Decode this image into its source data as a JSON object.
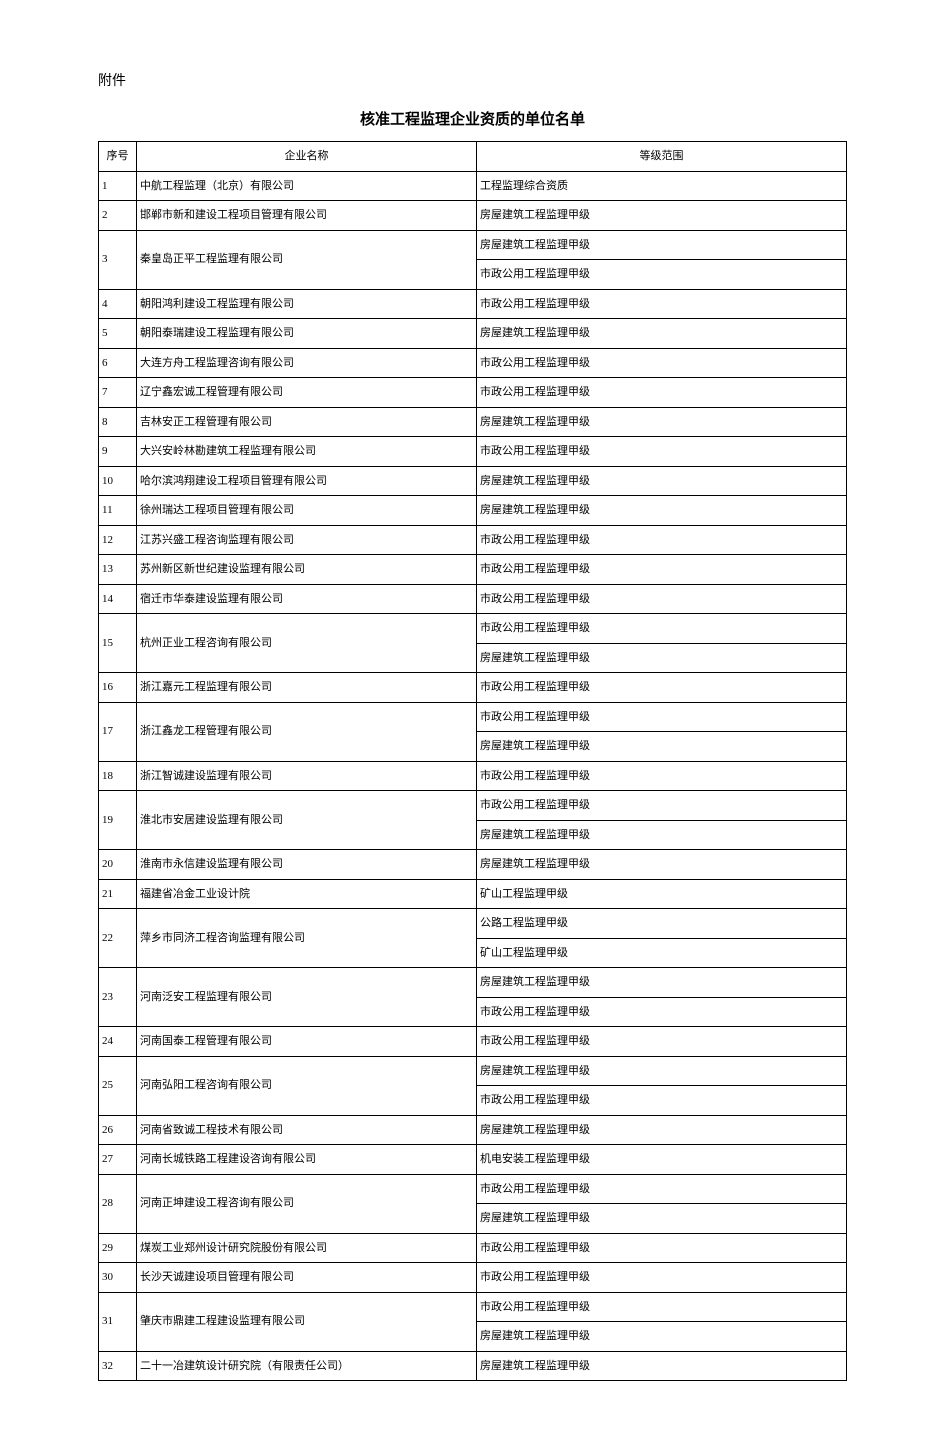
{
  "attachment_label": "附件",
  "title": "核准工程监理企业资质的单位名单",
  "headers": {
    "seq": "序号",
    "company": "企业名称",
    "scope": "等级范围"
  },
  "rows": [
    {
      "seq": "1",
      "company": "中航工程监理（北京）有限公司",
      "scopes": [
        "工程监理综合资质"
      ]
    },
    {
      "seq": "2",
      "company": "邯郸市新和建设工程项目管理有限公司",
      "scopes": [
        "房屋建筑工程监理甲级"
      ]
    },
    {
      "seq": "3",
      "company": "秦皇岛正平工程监理有限公司",
      "scopes": [
        "房屋建筑工程监理甲级",
        "市政公用工程监理甲级"
      ]
    },
    {
      "seq": "4",
      "company": "朝阳鸿利建设工程监理有限公司",
      "scopes": [
        "市政公用工程监理甲级"
      ]
    },
    {
      "seq": "5",
      "company": "朝阳泰瑞建设工程监理有限公司",
      "scopes": [
        "房屋建筑工程监理甲级"
      ]
    },
    {
      "seq": "6",
      "company": "大连方舟工程监理咨询有限公司",
      "scopes": [
        "市政公用工程监理甲级"
      ]
    },
    {
      "seq": "7",
      "company": "辽宁鑫宏诚工程管理有限公司",
      "scopes": [
        "市政公用工程监理甲级"
      ]
    },
    {
      "seq": "8",
      "company": "吉林安正工程管理有限公司",
      "scopes": [
        "房屋建筑工程监理甲级"
      ]
    },
    {
      "seq": "9",
      "company": "大兴安岭林勘建筑工程监理有限公司",
      "scopes": [
        "市政公用工程监理甲级"
      ]
    },
    {
      "seq": "10",
      "company": "哈尔滨鸿翔建设工程项目管理有限公司",
      "scopes": [
        "房屋建筑工程监理甲级"
      ]
    },
    {
      "seq": "11",
      "company": "徐州瑞达工程项目管理有限公司",
      "scopes": [
        "房屋建筑工程监理甲级"
      ]
    },
    {
      "seq": "12",
      "company": "江苏兴盛工程咨询监理有限公司",
      "scopes": [
        "市政公用工程监理甲级"
      ]
    },
    {
      "seq": "13",
      "company": "苏州新区新世纪建设监理有限公司",
      "scopes": [
        "市政公用工程监理甲级"
      ]
    },
    {
      "seq": "14",
      "company": "宿迁市华泰建设监理有限公司",
      "scopes": [
        "市政公用工程监理甲级"
      ]
    },
    {
      "seq": "15",
      "company": "杭州正业工程咨询有限公司",
      "scopes": [
        "市政公用工程监理甲级",
        "房屋建筑工程监理甲级"
      ]
    },
    {
      "seq": "16",
      "company": "浙江嘉元工程监理有限公司",
      "scopes": [
        "市政公用工程监理甲级"
      ]
    },
    {
      "seq": "17",
      "company": "浙江鑫龙工程管理有限公司",
      "scopes": [
        "市政公用工程监理甲级",
        "房屋建筑工程监理甲级"
      ]
    },
    {
      "seq": "18",
      "company": "浙江智诚建设监理有限公司",
      "scopes": [
        "市政公用工程监理甲级"
      ]
    },
    {
      "seq": "19",
      "company": "淮北市安居建设监理有限公司",
      "scopes": [
        "市政公用工程监理甲级",
        "房屋建筑工程监理甲级"
      ]
    },
    {
      "seq": "20",
      "company": "淮南市永信建设监理有限公司",
      "scopes": [
        "房屋建筑工程监理甲级"
      ]
    },
    {
      "seq": "21",
      "company": "福建省冶金工业设计院",
      "scopes": [
        "矿山工程监理甲级"
      ]
    },
    {
      "seq": "22",
      "company": "萍乡市同济工程咨询监理有限公司",
      "scopes": [
        "公路工程监理甲级",
        "矿山工程监理甲级"
      ]
    },
    {
      "seq": "23",
      "company": "河南泛安工程监理有限公司",
      "scopes": [
        "房屋建筑工程监理甲级",
        "市政公用工程监理甲级"
      ]
    },
    {
      "seq": "24",
      "company": "河南国泰工程管理有限公司",
      "scopes": [
        "市政公用工程监理甲级"
      ]
    },
    {
      "seq": "25",
      "company": "河南弘阳工程咨询有限公司",
      "scopes": [
        "房屋建筑工程监理甲级",
        "市政公用工程监理甲级"
      ]
    },
    {
      "seq": "26",
      "company": "河南省致诚工程技术有限公司",
      "scopes": [
        "房屋建筑工程监理甲级"
      ]
    },
    {
      "seq": "27",
      "company": "河南长城铁路工程建设咨询有限公司",
      "scopes": [
        "机电安装工程监理甲级"
      ]
    },
    {
      "seq": "28",
      "company": "河南正坤建设工程咨询有限公司",
      "scopes": [
        "市政公用工程监理甲级",
        "房屋建筑工程监理甲级"
      ]
    },
    {
      "seq": "29",
      "company": "煤炭工业郑州设计研究院股份有限公司",
      "scopes": [
        "市政公用工程监理甲级"
      ]
    },
    {
      "seq": "30",
      "company": "长沙天诚建设项目管理有限公司",
      "scopes": [
        "市政公用工程监理甲级"
      ]
    },
    {
      "seq": "31",
      "company": "肇庆市鼎建工程建设监理有限公司",
      "scopes": [
        "市政公用工程监理甲级",
        "房屋建筑工程监理甲级"
      ]
    },
    {
      "seq": "32",
      "company": "二十一冶建筑设计研究院（有限责任公司）",
      "scopes": [
        "房屋建筑工程监理甲级"
      ]
    }
  ]
}
